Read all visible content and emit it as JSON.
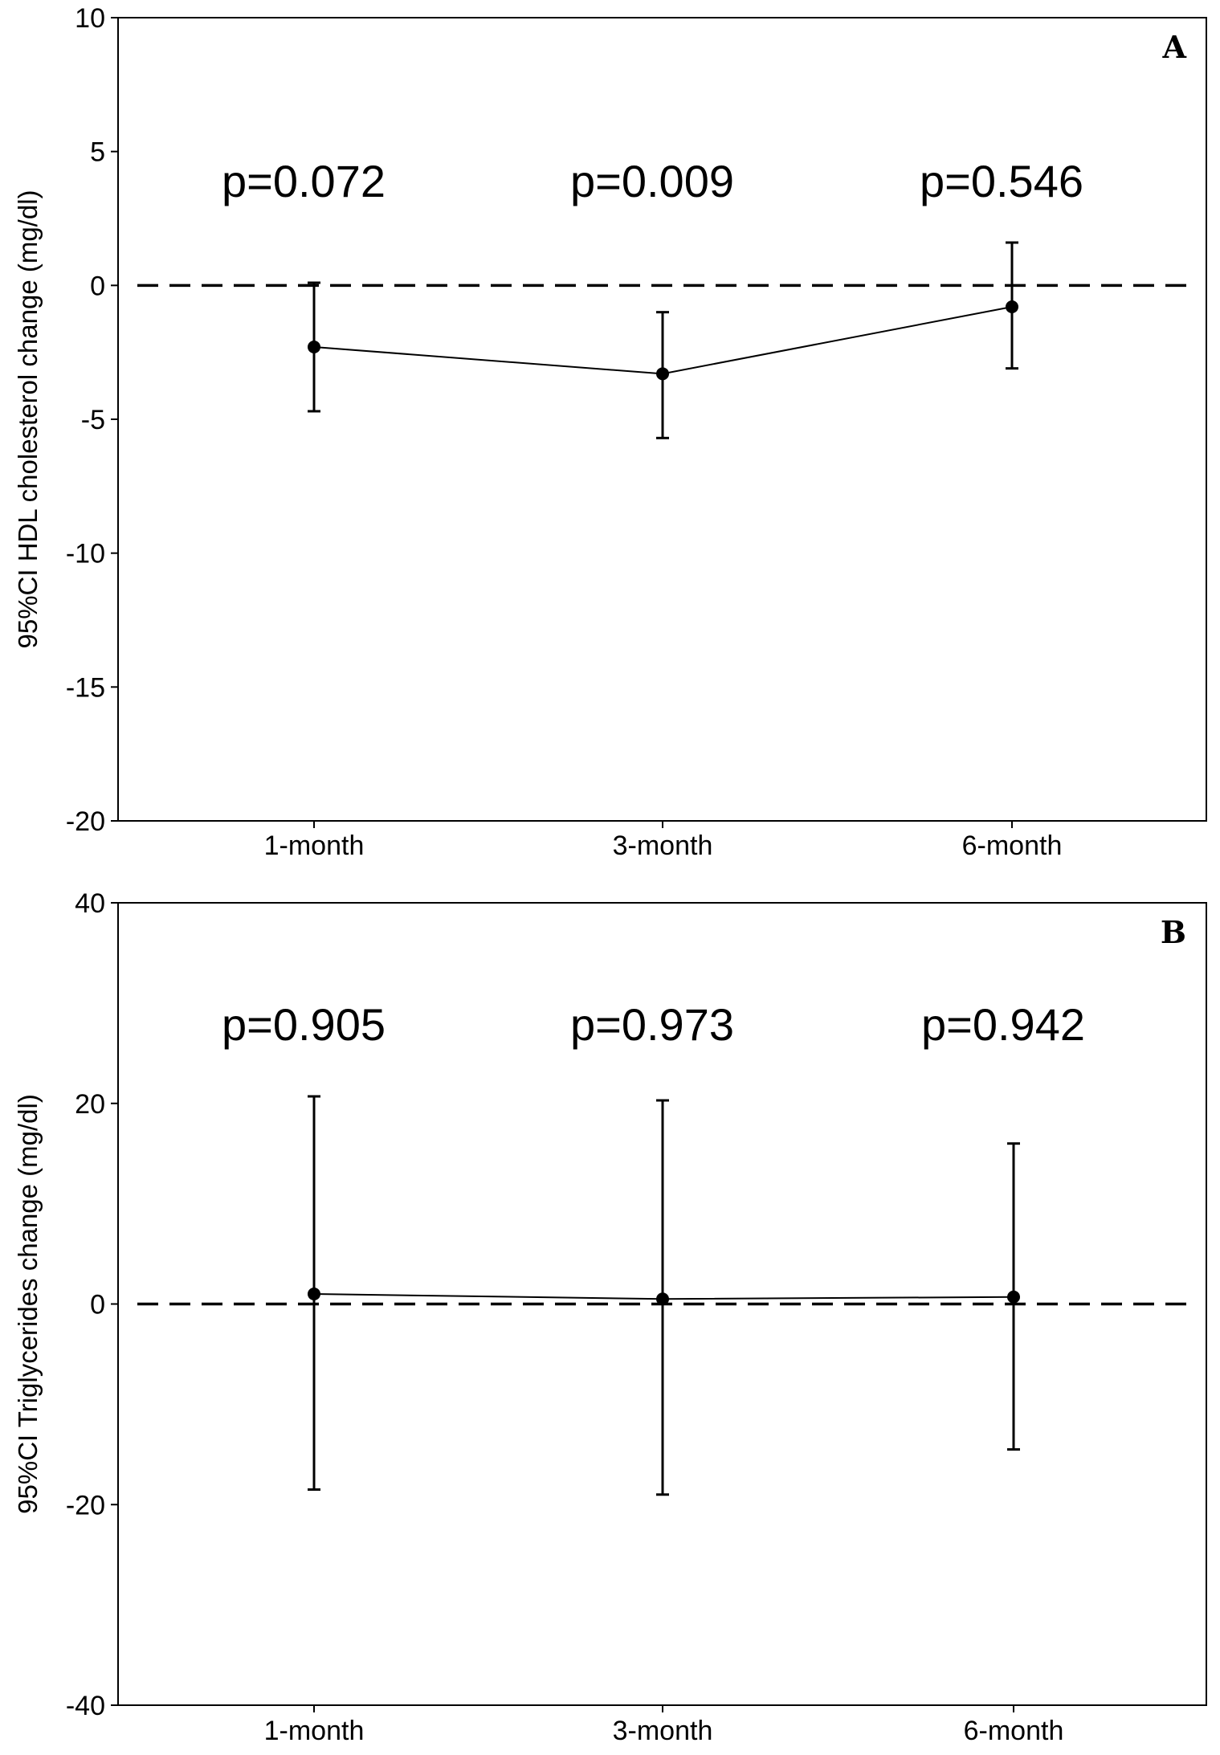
{
  "chart_data": [
    {
      "type": "line",
      "panel_label": "A",
      "ylabel": "95%CI HDL cholesterol change (mg/dl)",
      "xlabel": "",
      "categories": [
        "1-month",
        "3-month",
        "6-month"
      ],
      "ylim": [
        -20,
        10
      ],
      "yticks": [
        10,
        5,
        0,
        -5,
        -10,
        -15,
        -20
      ],
      "reference_line": 0,
      "series": [
        {
          "values": [
            -2.3,
            -3.3,
            -0.8
          ],
          "ci_lower": [
            -4.7,
            -5.7,
            -3.1
          ],
          "ci_upper": [
            0.1,
            -1.0,
            1.6
          ]
        }
      ],
      "annotations": [
        "p=0.072",
        "p=0.009",
        "p=0.546"
      ]
    },
    {
      "type": "line",
      "panel_label": "B",
      "ylabel": "95%CI Triglycerides change (mg/dl)",
      "xlabel": "",
      "categories": [
        "1-month",
        "3-month",
        "6-month"
      ],
      "ylim": [
        -40,
        40
      ],
      "yticks": [
        40,
        20,
        0,
        -20,
        -40
      ],
      "reference_line": 0,
      "series": [
        {
          "values": [
            1.0,
            0.5,
            0.7
          ],
          "ci_lower": [
            -18.5,
            -19.0,
            -14.5
          ],
          "ci_upper": [
            20.7,
            20.3,
            16.0
          ]
        }
      ],
      "annotations": [
        "p=0.905",
        "p=0.973",
        "p=0.942"
      ]
    }
  ]
}
